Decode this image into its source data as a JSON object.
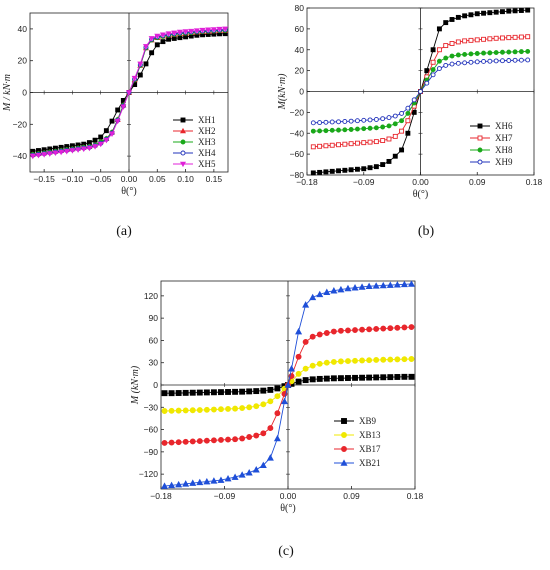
{
  "chart_data": [
    {
      "type": "line",
      "caption": "(a)",
      "xlabel": "θ(°)",
      "ylabel": "M / kN·m",
      "xlim": [
        -0.175,
        0.175
      ],
      "ylim": [
        -50,
        50
      ],
      "xticks": [
        -0.15,
        -0.1,
        -0.05,
        0.0,
        0.05,
        0.1,
        0.15
      ],
      "xtick_labels": [
        "−0.15",
        "−0.10",
        "−0.05",
        "0.00",
        "0.05",
        "0.10",
        "0.15"
      ],
      "yticks": [
        -40,
        -20,
        0,
        20,
        40
      ],
      "ytick_labels": [
        "−40",
        "−20",
        "0",
        "20",
        "40"
      ],
      "legend_position": "bottom-right",
      "x": [
        -0.17,
        -0.16,
        -0.15,
        -0.14,
        -0.13,
        -0.12,
        -0.11,
        -0.1,
        -0.09,
        -0.08,
        -0.07,
        -0.06,
        -0.05,
        -0.04,
        -0.03,
        -0.02,
        -0.01,
        0.0,
        0.01,
        0.02,
        0.03,
        0.04,
        0.05,
        0.06,
        0.07,
        0.08,
        0.09,
        0.1,
        0.11,
        0.12,
        0.13,
        0.14,
        0.15,
        0.16,
        0.17
      ],
      "series": [
        {
          "name": "XH1",
          "color": "#000000",
          "marker": "square-filled",
          "values": [
            -37,
            -36.5,
            -36,
            -35.5,
            -35,
            -34.5,
            -34,
            -33.5,
            -33,
            -32.5,
            -31.5,
            -30,
            -28,
            -24,
            -18,
            -11,
            -5,
            0,
            5,
            11,
            18,
            25,
            30,
            32,
            33.5,
            34,
            34.5,
            35,
            35.5,
            36,
            36.3,
            36.5,
            36.7,
            36.9,
            37
          ]
        },
        {
          "name": "XH2",
          "color": "#e8262c",
          "marker": "triangle-filled",
          "values": [
            -39,
            -38.5,
            -38,
            -37.5,
            -37,
            -36.5,
            -36,
            -35.5,
            -35,
            -34.5,
            -34,
            -33,
            -31,
            -29,
            -25,
            -17,
            -8,
            0,
            8,
            17,
            28,
            33,
            34.5,
            35.3,
            36,
            36.5,
            37,
            37.3,
            37.6,
            38,
            38.3,
            38.5,
            38.7,
            38.9,
            39
          ]
        },
        {
          "name": "XH3",
          "color": "#1aa81a",
          "marker": "circle-filled",
          "values": [
            -39,
            -38.5,
            -38,
            -37.5,
            -37,
            -36.5,
            -36,
            -35.5,
            -35,
            -34.5,
            -34,
            -33,
            -31,
            -29,
            -25,
            -17,
            -8,
            0,
            8,
            17,
            28,
            33,
            34.5,
            35.3,
            36,
            36.5,
            37,
            37.3,
            37.6,
            38,
            38.3,
            38.5,
            38.7,
            38.9,
            39
          ]
        },
        {
          "name": "XH4",
          "color": "#2233bb",
          "marker": "circle-open",
          "values": [
            -39.5,
            -39,
            -38.5,
            -38,
            -37.5,
            -37,
            -36.5,
            -36,
            -35.5,
            -35,
            -34.5,
            -33.5,
            -32,
            -29.5,
            -25.5,
            -17.5,
            -8.5,
            0,
            8.5,
            17.5,
            28.5,
            33.5,
            35,
            35.8,
            36.5,
            37,
            37.5,
            37.8,
            38.1,
            38.4,
            38.7,
            38.9,
            39.1,
            39.3,
            39.5
          ]
        },
        {
          "name": "XH5",
          "color": "#e020d8",
          "marker": "triangle-down-filled",
          "values": [
            -40,
            -39.5,
            -39,
            -38.5,
            -38,
            -37.5,
            -37,
            -36.5,
            -36,
            -35.5,
            -35,
            -34,
            -32.5,
            -30,
            -26,
            -18,
            -9,
            0,
            9,
            18,
            29,
            34,
            35.5,
            36.3,
            37,
            37.5,
            38,
            38.3,
            38.6,
            38.9,
            39.2,
            39.4,
            39.6,
            39.8,
            40
          ]
        }
      ]
    },
    {
      "type": "line",
      "caption": "(b)",
      "xlabel": "θ(°)",
      "ylabel": "M(kN·m)",
      "xlim": [
        -0.18,
        0.18
      ],
      "ylim": [
        -80,
        80
      ],
      "xticks": [
        -0.18,
        -0.09,
        0.0,
        0.09,
        0.18
      ],
      "xtick_labels": [
        "−0.18",
        "−0.09",
        "0.00",
        "0.09",
        "0.18"
      ],
      "yticks": [
        -80,
        -60,
        -40,
        -20,
        0,
        20,
        40,
        60,
        80
      ],
      "ytick_labels": [
        "−80",
        "−60",
        "−40",
        "−20",
        "0",
        "20",
        "40",
        "60",
        "80"
      ],
      "legend_position": "bottom-right",
      "x": [
        -0.17,
        -0.16,
        -0.15,
        -0.14,
        -0.13,
        -0.12,
        -0.11,
        -0.1,
        -0.09,
        -0.08,
        -0.07,
        -0.06,
        -0.05,
        -0.04,
        -0.03,
        -0.02,
        -0.01,
        0.0,
        0.01,
        0.02,
        0.03,
        0.04,
        0.05,
        0.06,
        0.07,
        0.08,
        0.09,
        0.1,
        0.11,
        0.12,
        0.13,
        0.14,
        0.15,
        0.16,
        0.17
      ],
      "series": [
        {
          "name": "XH6",
          "color": "#000000",
          "marker": "square-filled",
          "values": [
            -78,
            -77.5,
            -77,
            -76.5,
            -76,
            -75.5,
            -75,
            -74.5,
            -74,
            -73,
            -72,
            -70,
            -67,
            -62,
            -56,
            -40,
            -20,
            0,
            20,
            40,
            60,
            66,
            69,
            71,
            72.5,
            73.5,
            74.5,
            75,
            75.5,
            76,
            76.5,
            77,
            77.3,
            77.6,
            78
          ]
        },
        {
          "name": "XH7",
          "color": "#e8262c",
          "marker": "square-open",
          "values": [
            -53,
            -52.5,
            -52,
            -51.5,
            -51,
            -50.5,
            -50,
            -49.5,
            -49,
            -48.5,
            -48,
            -47,
            -45.5,
            -43,
            -38,
            -28,
            -14,
            0,
            14,
            28,
            40,
            44,
            46,
            47.5,
            48.5,
            49,
            49.5,
            50,
            50.5,
            51,
            51.3,
            51.6,
            51.9,
            52.2,
            52.5
          ]
        },
        {
          "name": "XH8",
          "color": "#1aa81a",
          "marker": "circle-filled",
          "values": [
            -38,
            -37.8,
            -37.5,
            -37.2,
            -37,
            -36.7,
            -36.4,
            -36,
            -35.6,
            -35.2,
            -34.8,
            -34,
            -33,
            -31,
            -28,
            -21,
            -11,
            0,
            11,
            21,
            29,
            32,
            34,
            35,
            35.5,
            36,
            36.4,
            36.8,
            37,
            37.3,
            37.6,
            37.8,
            38,
            38.2,
            38.4
          ]
        },
        {
          "name": "XH9",
          "color": "#2233bb",
          "marker": "circle-open",
          "values": [
            -30,
            -29.8,
            -29.5,
            -29.2,
            -29,
            -28.7,
            -28.4,
            -28,
            -27.6,
            -27.2,
            -26.8,
            -26,
            -25,
            -23.5,
            -21,
            -16,
            -8,
            0,
            8,
            16,
            22,
            25,
            26.3,
            27,
            27.5,
            28,
            28.4,
            28.8,
            29,
            29.3,
            29.5,
            29.7,
            29.9,
            30,
            30.2
          ]
        }
      ]
    },
    {
      "type": "line",
      "caption": "(c)",
      "xlabel": "θ(°)",
      "ylabel": "M (kN·m)",
      "xlim": [
        -0.18,
        0.18
      ],
      "ylim": [
        -140,
        140
      ],
      "xticks": [
        -0.18,
        -0.09,
        0.0,
        0.09,
        0.18
      ],
      "xtick_labels": [
        "−0.18",
        "−0.09",
        "0.00",
        "0.09",
        "0.18"
      ],
      "yticks": [
        -120,
        -90,
        -60,
        -30,
        0,
        30,
        60,
        90,
        120
      ],
      "ytick_labels": [
        "−120",
        "−90",
        "−60",
        "−30",
        "0",
        "30",
        "60",
        "90",
        "120"
      ],
      "legend_position": "bottom-right",
      "x": [
        -0.175,
        -0.165,
        -0.155,
        -0.145,
        -0.135,
        -0.125,
        -0.115,
        -0.105,
        -0.095,
        -0.085,
        -0.075,
        -0.065,
        -0.055,
        -0.045,
        -0.035,
        -0.025,
        -0.015,
        -0.005,
        0.0,
        0.005,
        0.015,
        0.025,
        0.035,
        0.045,
        0.055,
        0.065,
        0.075,
        0.085,
        0.095,
        0.105,
        0.115,
        0.125,
        0.135,
        0.145,
        0.155,
        0.165,
        0.175
      ],
      "series": [
        {
          "name": "XB9",
          "color": "#000000",
          "marker": "square-filled",
          "values": [
            -11,
            -11,
            -10.8,
            -10.6,
            -10.4,
            -10.2,
            -10,
            -9.8,
            -9.6,
            -9.4,
            -9.2,
            -9,
            -8.6,
            -8.2,
            -7.6,
            -6.6,
            -4.6,
            -1.6,
            0,
            1.6,
            4.6,
            6.6,
            7.6,
            8.2,
            8.6,
            9,
            9.2,
            9.4,
            9.6,
            9.8,
            10,
            10.2,
            10.4,
            10.6,
            10.8,
            11,
            11
          ]
        },
        {
          "name": "XB13",
          "color": "#f0e800",
          "marker": "circle-filled",
          "values": [
            -35,
            -34.8,
            -34.5,
            -34.2,
            -34,
            -33.7,
            -33.4,
            -33,
            -32.6,
            -32.2,
            -31.8,
            -31,
            -30,
            -28.5,
            -26,
            -22,
            -15,
            -5,
            0,
            5,
            15,
            22,
            26,
            28.5,
            30,
            31,
            31.8,
            32.2,
            32.6,
            33,
            33.4,
            33.7,
            34,
            34.2,
            34.5,
            34.8,
            35
          ]
        },
        {
          "name": "XB17",
          "color": "#e8262c",
          "marker": "circle-filled",
          "values": [
            -78,
            -77.5,
            -77,
            -76.5,
            -76,
            -75.5,
            -75,
            -74.5,
            -74,
            -73.5,
            -73,
            -72,
            -70,
            -68,
            -65,
            -58,
            -38,
            -12,
            0,
            12,
            38,
            58,
            65,
            68,
            70,
            72,
            73,
            73.5,
            74,
            74.5,
            75,
            75.5,
            76,
            76.5,
            77,
            77.5,
            78
          ]
        },
        {
          "name": "XB21",
          "color": "#1f4fd8",
          "marker": "triangle-filled",
          "values": [
            -136,
            -135,
            -134,
            -133,
            -132,
            -131,
            -130,
            -129,
            -128,
            -126,
            -124,
            -121,
            -118,
            -114,
            -108,
            -98,
            -72,
            -22,
            0,
            22,
            72,
            108,
            118,
            122,
            125,
            127,
            128.5,
            130,
            131,
            132,
            133,
            133.5,
            134,
            134.5,
            135,
            135.5,
            136
          ]
        }
      ]
    }
  ]
}
